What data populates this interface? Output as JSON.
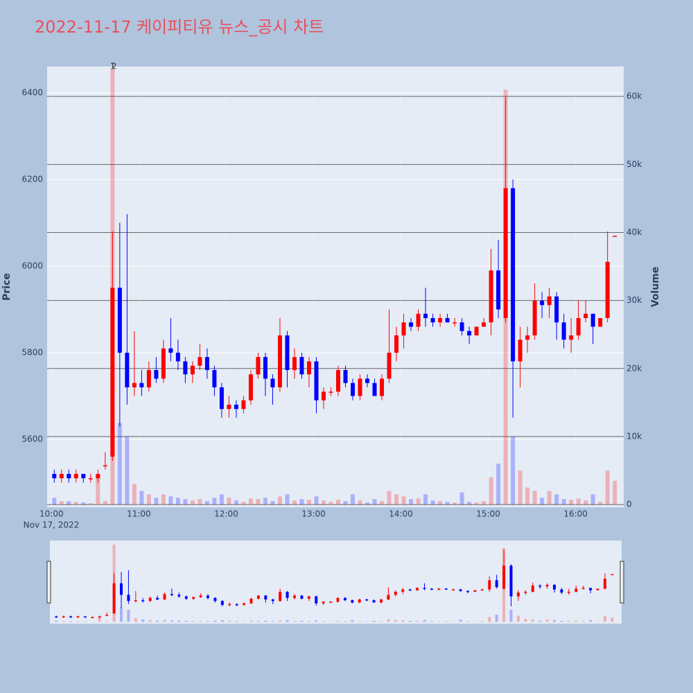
{
  "chart_data": {
    "type": "candlestick",
    "title": "2022-11-17 케이피티유 뉴스_공시 차트",
    "y_label": "Price",
    "y2_label": "Volume",
    "date_label": "Nov 17, 2022",
    "increasing_color": "#ff0000",
    "decreasing_color": "#0000ff",
    "x": [
      "2022-11-17 10:00",
      "2022-11-17 10:05",
      "2022-11-17 10:10",
      "2022-11-17 10:15",
      "2022-11-17 10:20",
      "2022-11-17 10:25",
      "2022-11-17 10:30",
      "2022-11-17 10:35",
      "2022-11-17 10:40",
      "2022-11-17 10:45",
      "2022-11-17 10:50",
      "2022-11-17 10:55",
      "2022-11-17 11:00",
      "2022-11-17 11:05",
      "2022-11-17 11:10",
      "2022-11-17 11:15",
      "2022-11-17 11:20",
      "2022-11-17 11:25",
      "2022-11-17 11:30",
      "2022-11-17 11:35",
      "2022-11-17 11:40",
      "2022-11-17 11:45",
      "2022-11-17 11:50",
      "2022-11-17 11:55",
      "2022-11-17 12:00",
      "2022-11-17 12:05",
      "2022-11-17 12:10",
      "2022-11-17 12:15",
      "2022-11-17 12:20",
      "2022-11-17 12:25",
      "2022-11-17 12:30",
      "2022-11-17 12:35",
      "2022-11-17 12:40",
      "2022-11-17 12:45",
      "2022-11-17 12:50",
      "2022-11-17 12:55",
      "2022-11-17 13:00",
      "2022-11-17 13:05",
      "2022-11-17 13:10",
      "2022-11-17 13:15",
      "2022-11-17 13:20",
      "2022-11-17 13:25",
      "2022-11-17 13:30",
      "2022-11-17 13:35",
      "2022-11-17 13:40",
      "2022-11-17 13:45",
      "2022-11-17 13:50",
      "2022-11-17 13:55",
      "2022-11-17 14:00",
      "2022-11-17 14:05",
      "2022-11-17 14:10",
      "2022-11-17 14:15",
      "2022-11-17 14:20",
      "2022-11-17 14:25",
      "2022-11-17 14:30",
      "2022-11-17 14:35",
      "2022-11-17 14:40",
      "2022-11-17 14:45",
      "2022-11-17 14:50",
      "2022-11-17 14:55",
      "2022-11-17 15:00",
      "2022-11-17 15:05",
      "2022-11-17 15:10",
      "2022-11-17 15:15",
      "2022-11-17 15:20",
      "2022-11-17 15:25",
      "2022-11-17 15:30",
      "2022-11-17 15:35",
      "2022-11-17 15:40",
      "2022-11-17 15:45",
      "2022-11-17 15:50",
      "2022-11-17 15:55",
      "2022-11-17 16:00",
      "2022-11-17 16:05",
      "2022-11-17 16:10",
      "2022-11-17 16:15",
      "2022-11-17 16:20",
      "2022-11-17 16:25"
    ],
    "open": [
      5520,
      5510,
      5520,
      5510,
      5520,
      5510,
      5510,
      5540,
      5560,
      5950,
      5800,
      5720,
      5730,
      5720,
      5760,
      5740,
      5810,
      5800,
      5780,
      5750,
      5770,
      5790,
      5760,
      5720,
      5670,
      5680,
      5670,
      5690,
      5750,
      5790,
      5740,
      5720,
      5840,
      5760,
      5790,
      5750,
      5780,
      5690,
      5710,
      5710,
      5760,
      5730,
      5700,
      5740,
      5730,
      5700,
      5740,
      5800,
      5840,
      5870,
      5860,
      5890,
      5880,
      5870,
      5880,
      5870,
      5870,
      5850,
      5840,
      5860,
      5870,
      5990,
      5880,
      6180,
      5780,
      5830,
      5840,
      5920,
      5910,
      5930,
      5870,
      5830,
      5840,
      5880,
      5890,
      5860,
      5880,
      6070
    ],
    "high": [
      5530,
      5530,
      5530,
      5530,
      5520,
      5520,
      5530,
      5570,
      6080,
      6100,
      6120,
      5850,
      5760,
      5780,
      5790,
      5830,
      5880,
      5830,
      5790,
      5780,
      5820,
      5810,
      5770,
      5730,
      5700,
      5690,
      5700,
      5760,
      5800,
      5800,
      5750,
      5880,
      5850,
      5810,
      5800,
      5790,
      5790,
      5720,
      5720,
      5770,
      5770,
      5740,
      5750,
      5750,
      5740,
      5750,
      5900,
      5860,
      5890,
      5880,
      5900,
      5950,
      5890,
      5890,
      5890,
      5880,
      5880,
      5860,
      5860,
      5880,
      6040,
      6060,
      6390,
      6200,
      5860,
      5860,
      5960,
      5940,
      5950,
      5940,
      5890,
      5880,
      5920,
      5920,
      5890,
      5880,
      6080,
      6070
    ],
    "low": [
      5500,
      5500,
      5500,
      5500,
      5500,
      5500,
      5500,
      5530,
      5550,
      5630,
      5680,
      5700,
      5700,
      5710,
      5730,
      5730,
      5780,
      5760,
      5730,
      5730,
      5760,
      5740,
      5700,
      5650,
      5650,
      5650,
      5660,
      5680,
      5740,
      5700,
      5680,
      5710,
      5720,
      5740,
      5740,
      5720,
      5660,
      5670,
      5700,
      5700,
      5720,
      5690,
      5690,
      5720,
      5700,
      5690,
      5730,
      5780,
      5810,
      5850,
      5850,
      5860,
      5860,
      5860,
      5870,
      5860,
      5840,
      5820,
      5840,
      5860,
      5840,
      5880,
      5870,
      5650,
      5720,
      5800,
      5830,
      5880,
      5880,
      5830,
      5810,
      5800,
      5830,
      5870,
      5820,
      5860,
      5870,
      6070
    ],
    "close": [
      5510,
      5520,
      5510,
      5520,
      5510,
      5510,
      5520,
      5540,
      5950,
      5800,
      5720,
      5730,
      5720,
      5760,
      5740,
      5810,
      5800,
      5780,
      5750,
      5770,
      5790,
      5760,
      5720,
      5670,
      5680,
      5670,
      5690,
      5750,
      5790,
      5740,
      5720,
      5840,
      5760,
      5790,
      5750,
      5780,
      5690,
      5710,
      5710,
      5760,
      5730,
      5700,
      5740,
      5730,
      5700,
      5740,
      5800,
      5840,
      5870,
      5860,
      5890,
      5880,
      5870,
      5880,
      5870,
      5870,
      5850,
      5840,
      5860,
      5870,
      5990,
      5900,
      6180,
      5780,
      5830,
      5840,
      5920,
      5910,
      5930,
      5870,
      5830,
      5840,
      5880,
      5890,
      5860,
      5880,
      6010,
      6070
    ],
    "volume": [
      1000,
      500,
      500,
      400,
      300,
      200,
      4000,
      500,
      64000,
      12000,
      10000,
      3000,
      2000,
      1500,
      1000,
      1500,
      1200,
      1000,
      800,
      600,
      800,
      500,
      1000,
      1500,
      1000,
      600,
      400,
      900,
      800,
      1000,
      500,
      1200,
      1500,
      600,
      800,
      700,
      1200,
      600,
      400,
      700,
      500,
      1500,
      600,
      300,
      800,
      500,
      2000,
      1500,
      1200,
      800,
      900,
      1500,
      600,
      500,
      400,
      300,
      1800,
      400,
      300,
      500,
      4000,
      6000,
      61000,
      10000,
      5000,
      2500,
      2000,
      1000,
      2000,
      1500,
      800,
      700,
      900,
      600,
      1500,
      400,
      5000,
      3500
    ],
    "annotations": [
      {
        "x": "2022-11-17 10:42",
        "text": "1"
      },
      {
        "x": "2022-11-17 10:43",
        "text": "2"
      }
    ],
    "xlim": [
      "2022-11-17 09:57",
      "2022-11-17 16:33"
    ],
    "xticks": [
      {
        "value": "2022-11-17 10:00",
        "label": "10:00"
      },
      {
        "value": "2022-11-17 11:00",
        "label": "11:00"
      },
      {
        "value": "2022-11-17 12:00",
        "label": "12:00"
      },
      {
        "value": "2022-11-17 13:00",
        "label": "13:00"
      },
      {
        "value": "2022-11-17 14:00",
        "label": "14:00"
      },
      {
        "value": "2022-11-17 15:00",
        "label": "15:00"
      },
      {
        "value": "2022-11-17 16:00",
        "label": "16:00"
      }
    ],
    "ylim": [
      5443,
      6461
    ],
    "yticks": [
      5600,
      5800,
      6000,
      6200,
      6400
    ],
    "y2lim": [
      -400,
      64400
    ],
    "y2ticks": [
      0,
      {
        "value": 10000,
        "label": "10k"
      },
      {
        "value": 20000,
        "label": "20k"
      },
      {
        "value": 30000,
        "label": "30k"
      },
      {
        "value": 40000,
        "label": "40k"
      },
      {
        "value": 50000,
        "label": "50k"
      },
      {
        "value": 60000,
        "label": "60k"
      }
    ],
    "grid": true,
    "rangeslider": true
  }
}
